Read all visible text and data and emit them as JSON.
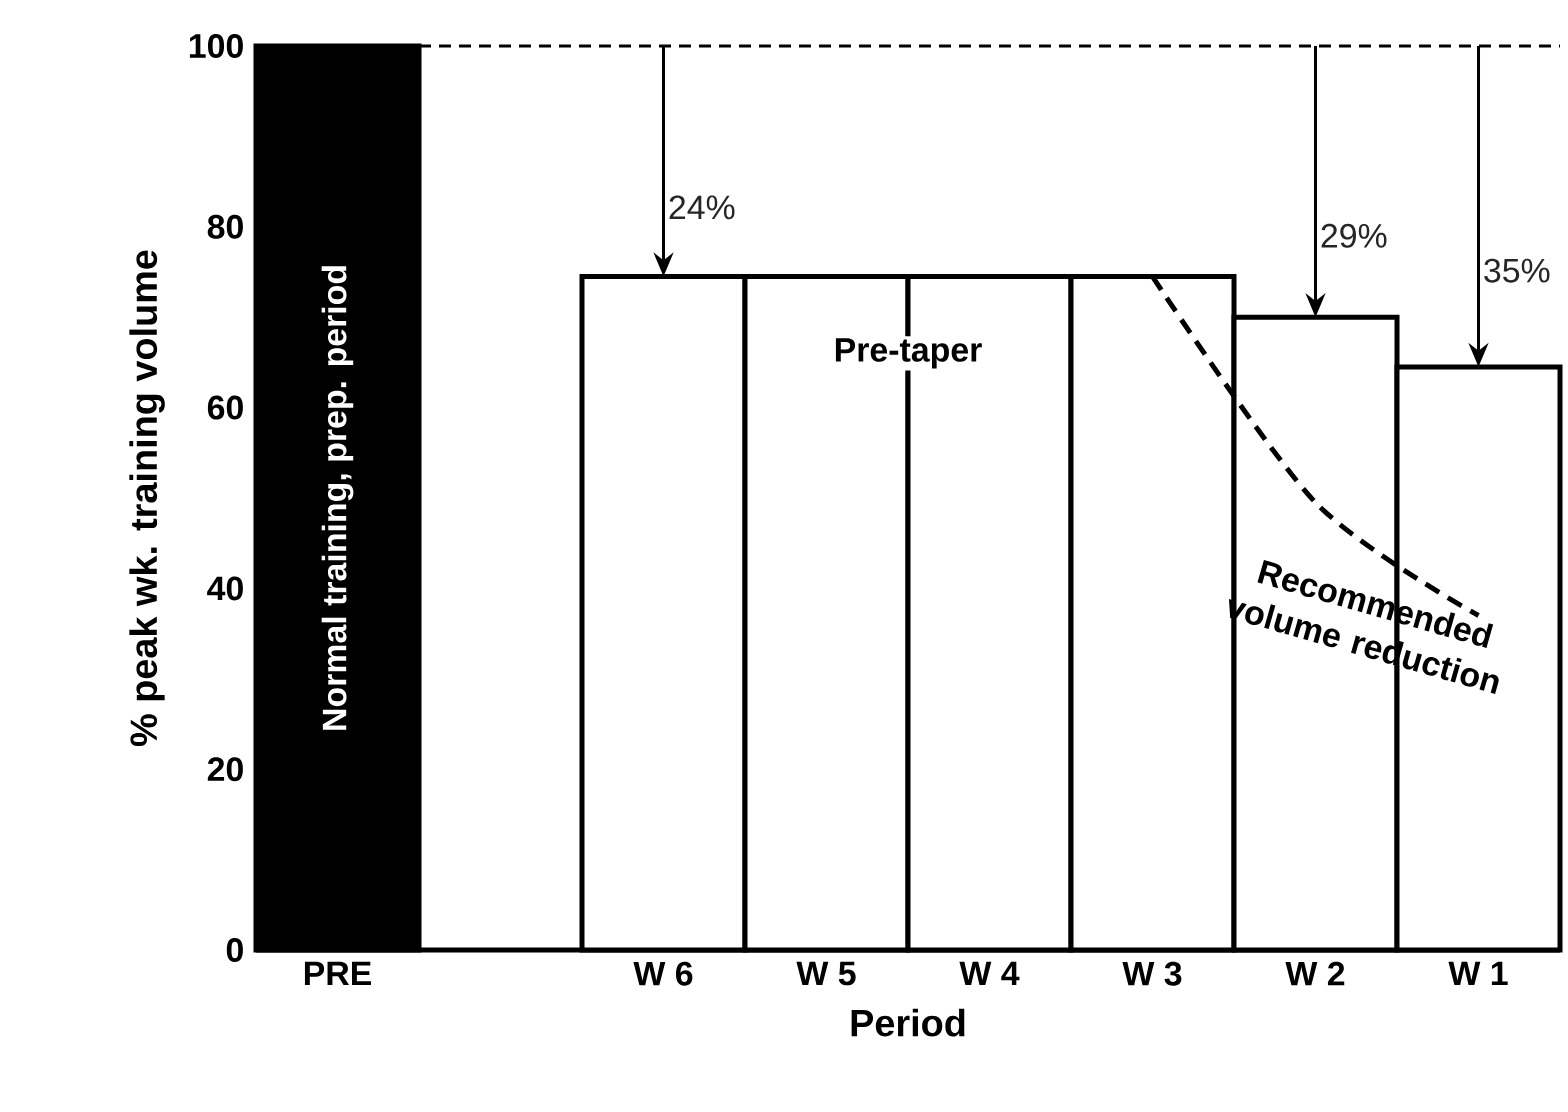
{
  "chart_data": {
    "type": "bar",
    "xlabel": "Period",
    "ylabel": "% peak wk. training volume",
    "categories": [
      "PRE",
      null,
      "W 6",
      "W 5",
      "W 4",
      "W 3",
      "W 2",
      "W 1"
    ],
    "series": [
      {
        "colors": [
          "#000000",
          "#ffffff",
          "#ffffff",
          "#ffffff",
          "#ffffff",
          "#ffffff",
          "#ffffff",
          "#ffffff"
        ],
        "values": [
          100,
          null,
          74.5,
          74.5,
          74.5,
          74.5,
          70,
          64.5
        ]
      },
      {
        "type": "line",
        "name": "Recommended volume reduction",
        "color": "#000000",
        "line_style": "dashed",
        "values": [
          null,
          null,
          null,
          null,
          null,
          74.5,
          49.5,
          37
        ]
      }
    ],
    "ylim": [
      0,
      100
    ],
    "yticks": [
      0,
      20,
      40,
      60,
      80,
      100
    ],
    "ref_lines": [
      {
        "axis": "y",
        "value": 100,
        "line_style": "dashed"
      }
    ],
    "annotations": [
      "Normal training, prep. period",
      {
        "text": "24%",
        "x": "W 6",
        "y": 74.5
      },
      {
        "text": "29%",
        "x": "W 2",
        "y": 70
      },
      {
        "text": "35%",
        "x": "W 1",
        "y": 64.5
      },
      "Pre-taper"
    ]
  }
}
